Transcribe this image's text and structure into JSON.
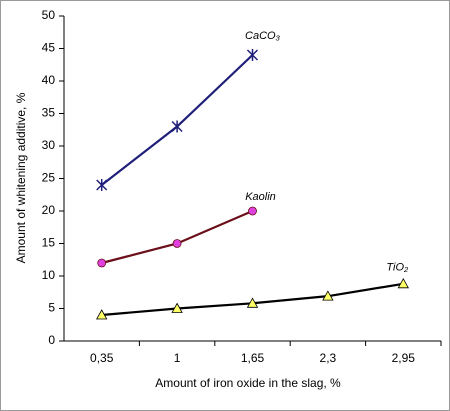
{
  "chart_data": {
    "type": "line",
    "x_label": "Amount of iron oxide in the slag, %",
    "y_label": "Amount of whitening additive, %",
    "categories": [
      "0,35",
      "1",
      "1,65",
      "2,3",
      "2,95"
    ],
    "series": [
      {
        "name": "CaCO₃",
        "color": "#1f1f7a",
        "marker": "star",
        "values": [
          24,
          33,
          44,
          null,
          null
        ]
      },
      {
        "name": "Kaolin",
        "color": "#6b0f1a",
        "marker_color": "#e040e0",
        "marker": "circle",
        "values": [
          12,
          15,
          20,
          null,
          null
        ]
      },
      {
        "name": "TiO₂",
        "color": "#000000",
        "marker_color": "#ffff66",
        "marker": "triangle",
        "values": [
          4,
          5,
          5.8,
          6.9,
          8.8
        ]
      }
    ],
    "ylim": [
      0,
      50
    ],
    "yticks": [
      0,
      5,
      10,
      15,
      20,
      25,
      30,
      35,
      40,
      45,
      50
    ]
  }
}
